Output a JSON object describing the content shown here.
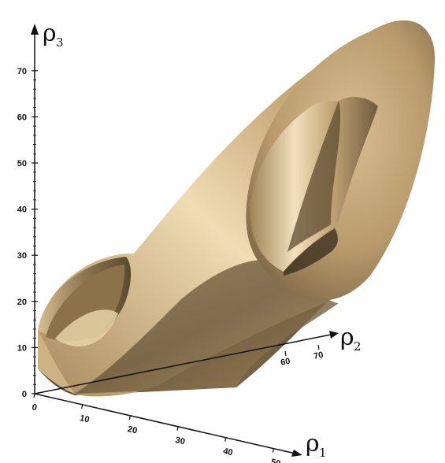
{
  "axes": {
    "rho1": {
      "name": "ρ",
      "subscript": "1",
      "ticks": [
        "0",
        "10",
        "20",
        "30",
        "40",
        "50"
      ]
    },
    "rho2": {
      "name": "ρ",
      "subscript": "2",
      "ticks": [
        "60",
        "70"
      ]
    },
    "rho3": {
      "name": "ρ",
      "subscript": "3",
      "ticks": [
        "0",
        "10",
        "20",
        "30",
        "40",
        "50",
        "60",
        "70"
      ]
    }
  },
  "colors": {
    "surface_light": "#e6cda0",
    "surface_mid": "#b99a6c",
    "surface_dark": "#6b5a3d",
    "axis": "#111111"
  }
}
